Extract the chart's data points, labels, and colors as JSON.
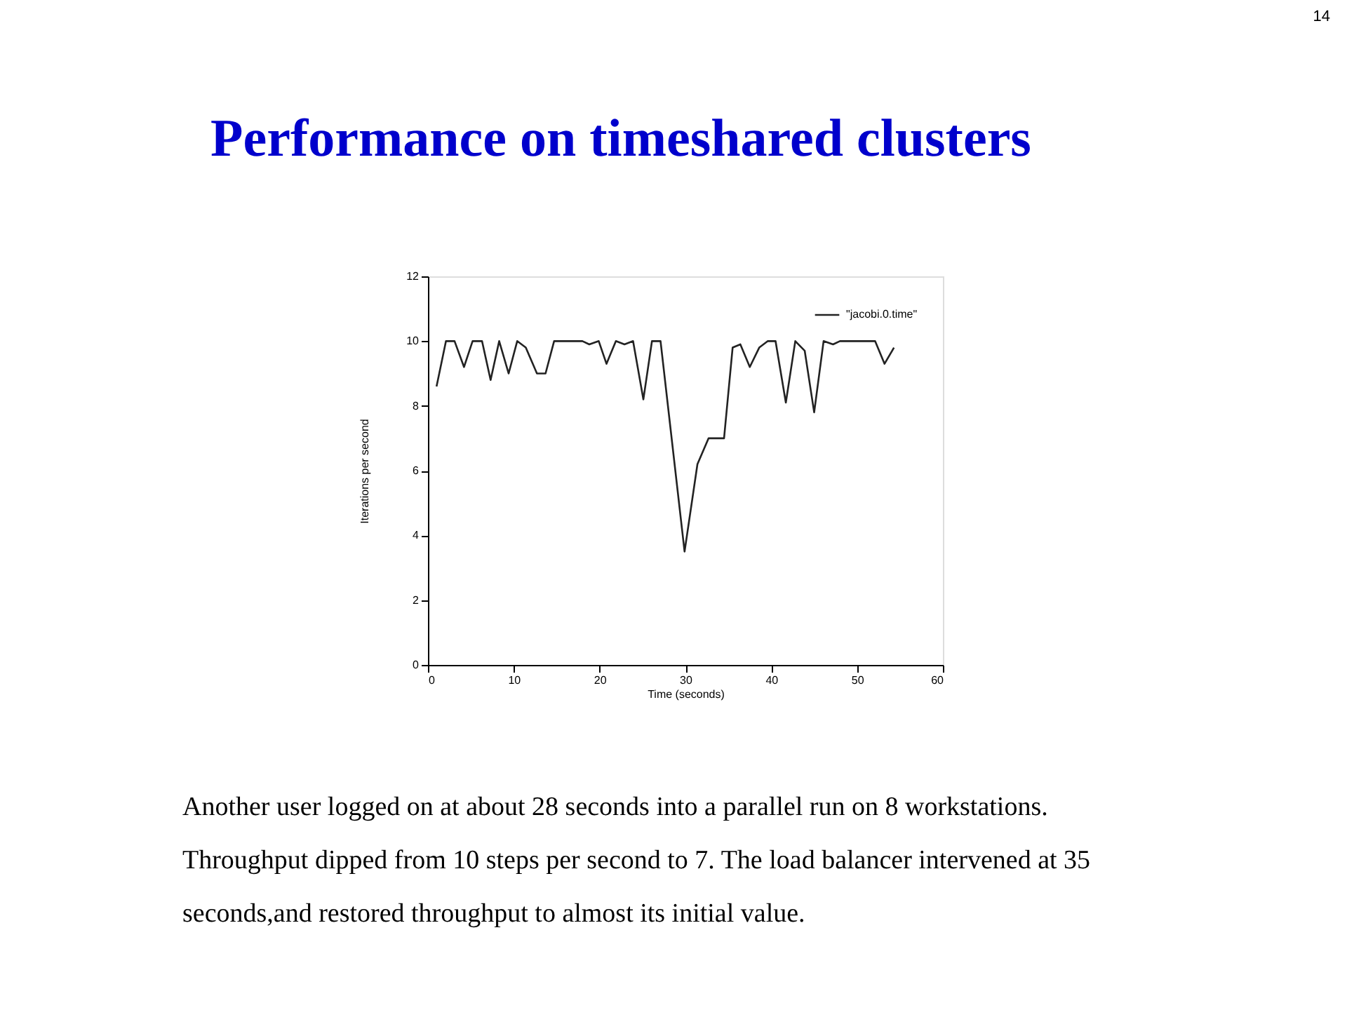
{
  "chart_data": {
    "type": "line",
    "title": "Performance on timeshared clusters",
    "xlabel": "Time (seconds)",
    "ylabel": "Iterations per second",
    "x": [
      1.0,
      2.1,
      3.1,
      4.2,
      5.2,
      6.3,
      7.3,
      8.3,
      9.4,
      10.4,
      11.4,
      12.7,
      13.7,
      14.7,
      18.0,
      18.8,
      19.9,
      20.8,
      21.9,
      22.9,
      23.9,
      25.1,
      26.1,
      27.1,
      29.9,
      31.4,
      32.7,
      33.6,
      34.5,
      35.5,
      36.4,
      37.5,
      38.6,
      39.6,
      40.5,
      41.7,
      42.8,
      43.9,
      45.0,
      46.1,
      47.2,
      48.0,
      52.1,
      53.2,
      54.3
    ],
    "series": [
      {
        "name": "\"jacobi.0.time\"",
        "color": "#222222",
        "values": [
          8.6,
          10.0,
          10.0,
          9.2,
          10.0,
          10.0,
          8.8,
          10.0,
          9.0,
          10.0,
          9.8,
          9.0,
          9.0,
          10.0,
          10.0,
          9.9,
          10.0,
          9.3,
          10.0,
          9.9,
          10.0,
          8.2,
          10.0,
          10.0,
          3.5,
          6.2,
          7.0,
          7.0,
          7.0,
          9.8,
          9.9,
          9.2,
          9.8,
          10.0,
          10.0,
          8.1,
          10.0,
          9.7,
          7.8,
          10.0,
          9.9,
          10.0,
          10.0,
          9.3,
          9.8
        ]
      }
    ],
    "xlim": [
      0,
      60
    ],
    "xticks": [
      0,
      10,
      20,
      30,
      40,
      50,
      60
    ],
    "ylim": [
      0,
      12
    ],
    "yticks": [
      0,
      2,
      4,
      6,
      8,
      10,
      12
    ],
    "grid": false,
    "legend": "top right",
    "marker": "none",
    "line_style": "solid",
    "annotations": [
      "14",
      "Another user logged on at about 28 seconds into a parallel run on 8 workstations. Throughput dipped from 10 steps per second to 7. The load balancer intervened at 35 seconds,and restored throughput to almost its initial value."
    ]
  }
}
